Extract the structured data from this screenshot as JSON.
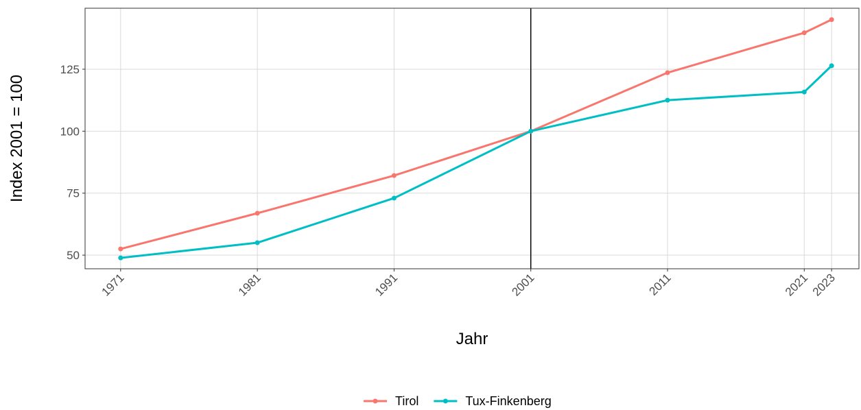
{
  "chart_data": {
    "type": "line",
    "x_label": "Jahr",
    "y_label": "Index 2001 = 100",
    "x": [
      1971,
      1981,
      1991,
      2001,
      2011,
      2021,
      2023
    ],
    "series": [
      {
        "name": "Tirol",
        "color": "#F8766D",
        "values": [
          52.5,
          66.9,
          82.1,
          100,
          123.6,
          139.7,
          145.0
        ]
      },
      {
        "name": "Tux-Finkenberg",
        "color": "#00BFC4",
        "values": [
          48.9,
          55.0,
          73.0,
          100,
          112.5,
          115.8,
          126.4
        ]
      }
    ],
    "xlim": [
      1968.4,
      2025.0
    ],
    "xticks": [
      1971,
      1981,
      1991,
      2001,
      2011,
      2021,
      2023
    ],
    "ylim": [
      44.5,
      149.6
    ],
    "yticks": [
      50,
      75,
      100,
      125
    ],
    "vline": 2001,
    "grid": true,
    "legend": "bottom"
  }
}
